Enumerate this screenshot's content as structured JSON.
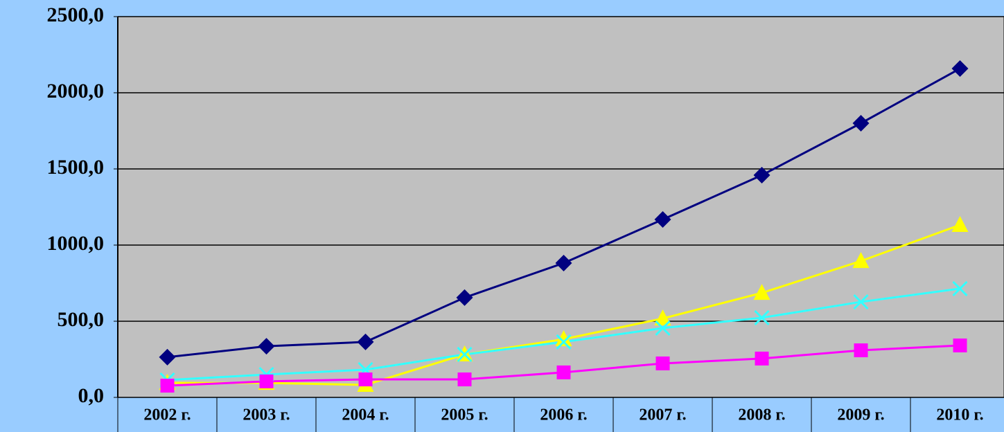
{
  "chart_data": {
    "type": "line",
    "categories": [
      "2002 г.",
      "2003 г.",
      "2004 г.",
      "2005 г.",
      "2006 г.",
      "2007 г.",
      "2008 г.",
      "2009 г.",
      "2010 г."
    ],
    "series": [
      {
        "color": "#000080",
        "marker": "diamond",
        "values": [
          264,
          336,
          364,
          655,
          882,
          1168,
          1459,
          1800,
          2159
        ]
      },
      {
        "color": "#ffff00",
        "marker": "triangle",
        "values": [
          95,
          95,
          82,
          282,
          382,
          518,
          686,
          895,
          1132
        ]
      },
      {
        "color": "#33ffff",
        "marker": "x",
        "values": [
          114,
          150,
          182,
          282,
          364,
          455,
          523,
          627,
          714
        ]
      },
      {
        "color": "#ff00ff",
        "marker": "square",
        "values": [
          77,
          105,
          118,
          118,
          164,
          223,
          255,
          309,
          341
        ]
      }
    ],
    "ylim": [
      0,
      2500
    ],
    "yticks": [
      {
        "value": 0,
        "label": "0,0"
      },
      {
        "value": 500,
        "label": "500,0"
      },
      {
        "value": 1000,
        "label": "1000,0"
      },
      {
        "value": 1500,
        "label": "1500,0"
      },
      {
        "value": 2000,
        "label": "2000,0"
      },
      {
        "value": 2500,
        "label": "2500,0"
      }
    ],
    "grid": true
  }
}
